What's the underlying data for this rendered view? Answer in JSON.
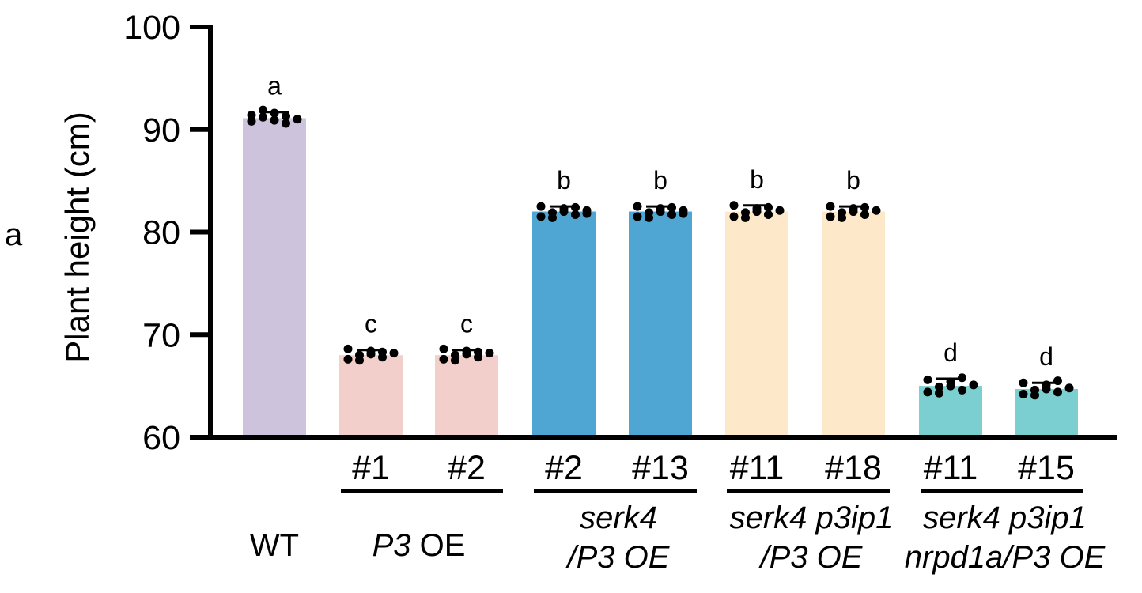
{
  "panel_label": "a",
  "chart_data": {
    "type": "bar",
    "ylabel": "Plant height (cm)",
    "ylim": [
      60,
      100
    ],
    "yticks": [
      "60",
      "70",
      "80",
      "90",
      "100"
    ],
    "grid": false,
    "categories": [
      "WT",
      "#1",
      "#2",
      "#2",
      "#13",
      "#11",
      "#18",
      "#11",
      "#15"
    ],
    "values": [
      91.1,
      68.0,
      68.0,
      82.0,
      82.0,
      82.0,
      82.0,
      65.0,
      64.7
    ],
    "errors": [
      0.6,
      0.5,
      0.5,
      0.5,
      0.5,
      0.6,
      0.5,
      0.7,
      0.6
    ],
    "significance": [
      "a",
      "c",
      "c",
      "b",
      "b",
      "b",
      "b",
      "d",
      "d"
    ],
    "colors": [
      "#cdc3dd",
      "#f3cfcc",
      "#f3cfcc",
      "#4fa6d3",
      "#4fa6d3",
      "#fde9ca",
      "#fde9ca",
      "#7ccfd0",
      "#7ccfd0"
    ],
    "points": [
      [
        90.8,
        91.2,
        91.6,
        90.6,
        91.0,
        91.4,
        91.9,
        90.9,
        91.3
      ],
      [
        67.6,
        68.0,
        68.4,
        67.8,
        68.2,
        68.6,
        67.5,
        68.1,
        68.3
      ],
      [
        67.6,
        68.0,
        68.4,
        67.8,
        68.2,
        68.6,
        67.5,
        68.1,
        68.3
      ],
      [
        81.5,
        81.9,
        82.3,
        81.7,
        82.1,
        82.5,
        81.4,
        82.0,
        82.4,
        81.8
      ],
      [
        81.5,
        81.9,
        82.3,
        81.7,
        82.1,
        82.5,
        81.4,
        82.0,
        82.4,
        81.8
      ],
      [
        81.5,
        81.9,
        82.3,
        81.7,
        82.1,
        82.6,
        81.4,
        82.0,
        82.4
      ],
      [
        81.5,
        81.9,
        82.3,
        81.7,
        82.1,
        82.5,
        81.4,
        82.0,
        82.4
      ],
      [
        64.4,
        64.9,
        65.4,
        64.6,
        65.1,
        65.6,
        64.3,
        65.0,
        65.8
      ],
      [
        64.2,
        64.6,
        65.1,
        64.4,
        64.8,
        65.3,
        64.1,
        64.7,
        65.5
      ]
    ],
    "groups": [
      {
        "lines": [
          ""
        ],
        "italic": [
          false
        ],
        "range": [
          0,
          0
        ],
        "underline": false,
        "label_html": "WT"
      },
      {
        "range": [
          1,
          2
        ],
        "underline": true,
        "label_italic": "P3",
        "label_plain": " OE"
      },
      {
        "range": [
          3,
          4
        ],
        "underline": true,
        "lines": [
          "serk4",
          "/P3 OE"
        ]
      },
      {
        "range": [
          5,
          6
        ],
        "underline": true,
        "lines": [
          "serk4 p3ip1",
          "/P3 OE"
        ]
      },
      {
        "range": [
          7,
          8
        ],
        "underline": true,
        "lines": [
          "serk4 p3ip1",
          "nrpd1a/P3 OE"
        ]
      }
    ]
  }
}
